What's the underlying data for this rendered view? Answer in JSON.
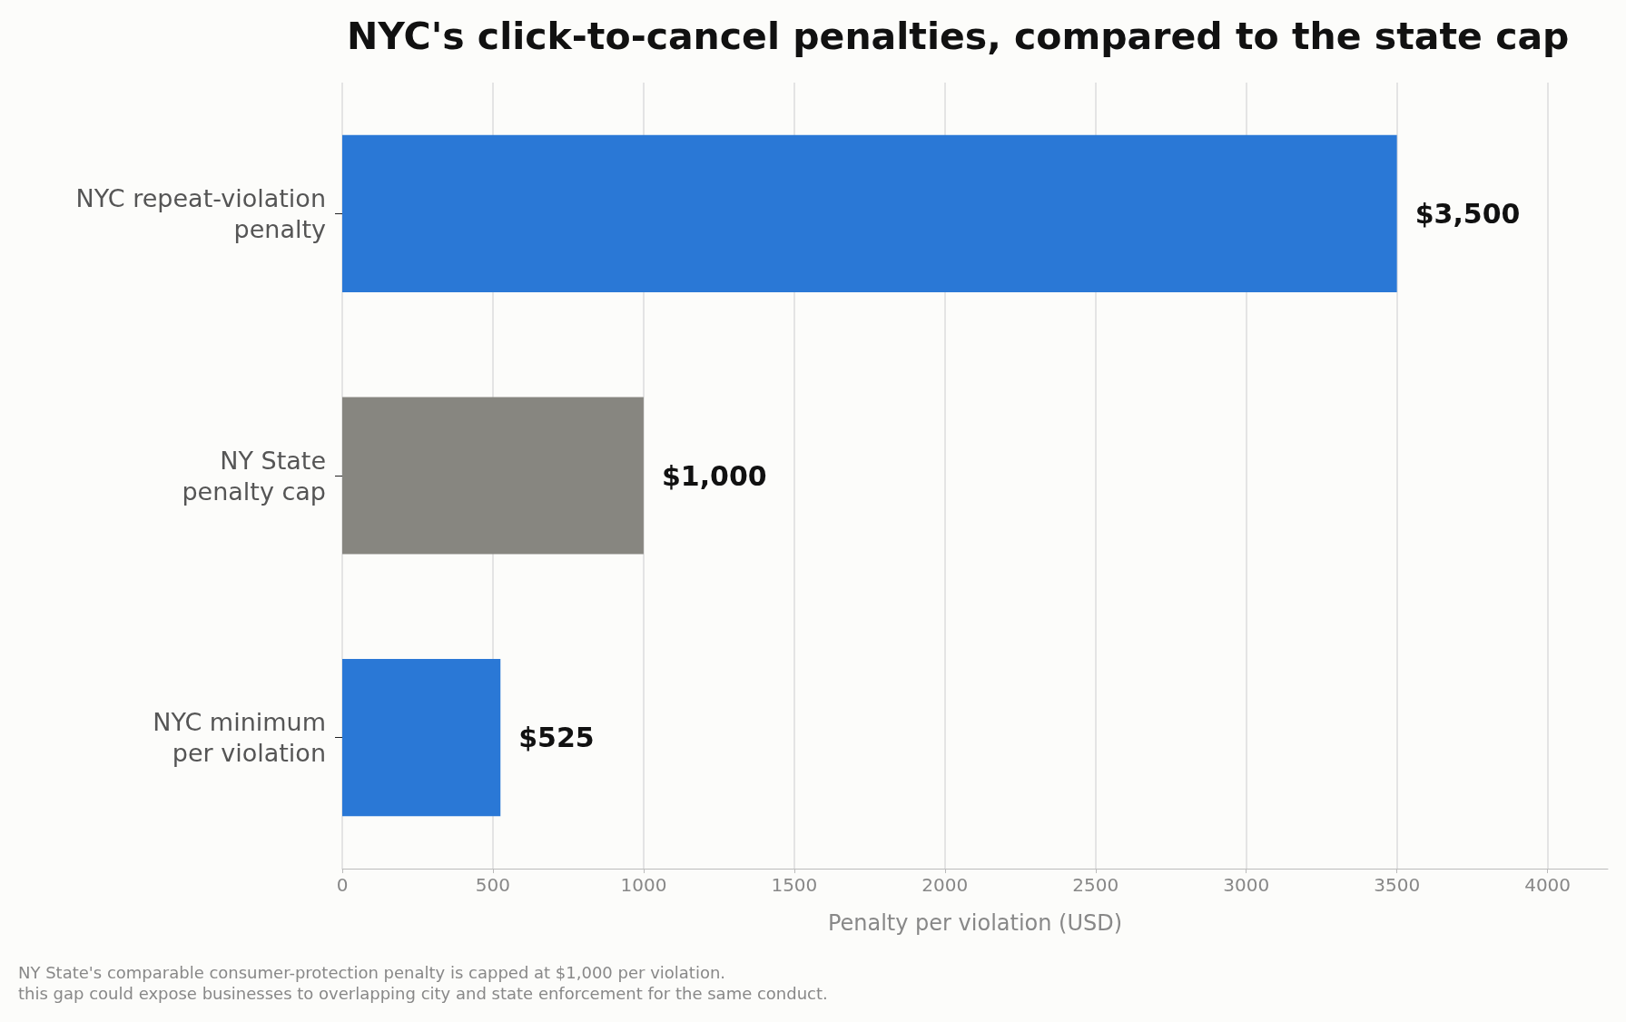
{
  "chart_data": {
    "type": "bar",
    "orientation": "horizontal",
    "title": "NYC's click-to-cancel penalties, compared to the state cap",
    "categories": [
      "NYC repeat-violation\npenalty",
      "NY State\npenalty cap",
      "NYC minimum\nper violation"
    ],
    "values": [
      3500,
      1000,
      525
    ],
    "colors": [
      "#2a78d6",
      "#878680",
      "#2a78d6"
    ],
    "value_labels": [
      "$3,500",
      "$1,000",
      "$525"
    ],
    "xlabel": "Penalty per violation (USD)",
    "xlim": [
      0,
      4200
    ],
    "xticks": [
      0,
      500,
      1000,
      1500,
      2000,
      2500,
      3000,
      3500,
      4000
    ],
    "grid": "x",
    "annotations": [
      "NY State's comparable consumer-protection penalty is capped at $1,000 per violation.",
      "this gap could expose businesses to overlapping city and state enforcement for the same conduct."
    ]
  }
}
